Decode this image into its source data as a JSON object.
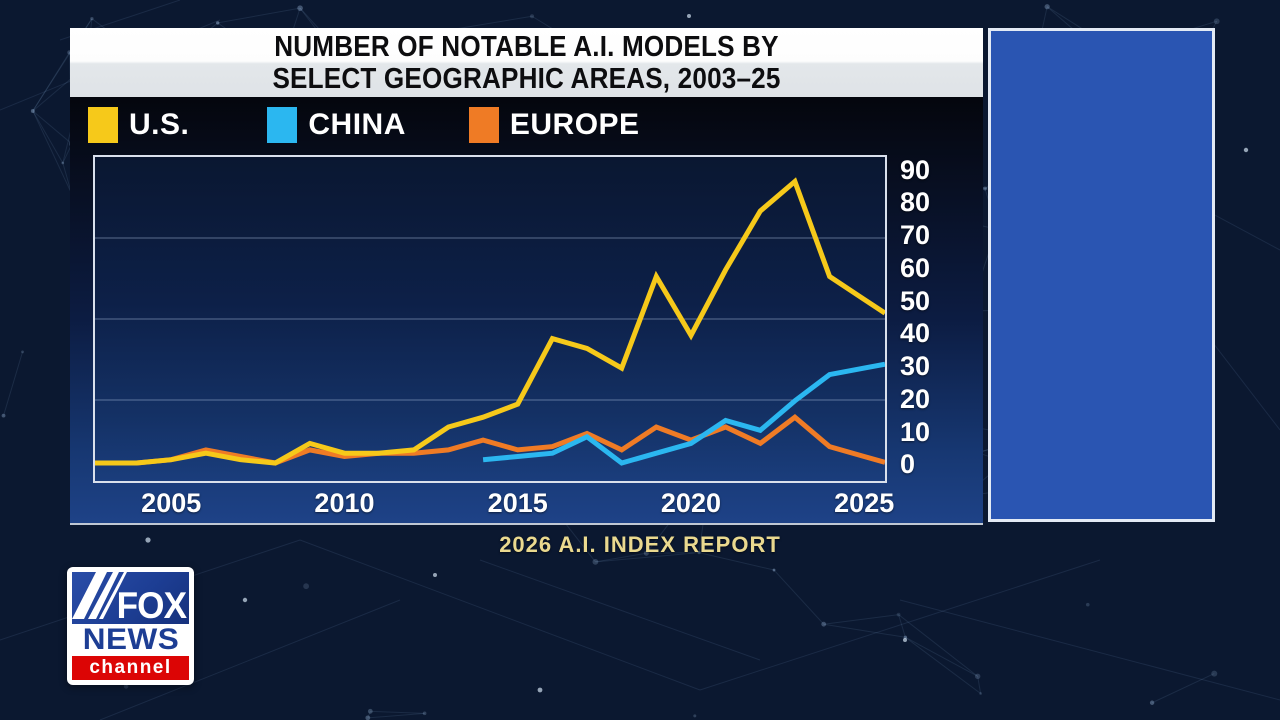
{
  "header": {
    "title_line1": "NUMBER OF NOTABLE A.I. MODELS BY",
    "title_line2": "SELECT GEOGRAPHIC AREAS, 2003–25"
  },
  "legend": {
    "position": "top-left",
    "items": [
      {
        "label": "U.S.",
        "color": "#f6c91a"
      },
      {
        "label": "CHINA",
        "color": "#2bb7f0"
      },
      {
        "label": "EUROPE",
        "color": "#ef7b25"
      }
    ]
  },
  "chart_data": {
    "type": "line",
    "title": "NUMBER OF NOTABLE A.I. MODELS BY SELECT GEOGRAPHIC AREAS, 2003–25",
    "x": [
      2003,
      2004,
      2005,
      2006,
      2007,
      2008,
      2009,
      2010,
      2011,
      2012,
      2013,
      2014,
      2015,
      2016,
      2017,
      2018,
      2019,
      2020,
      2021,
      2022,
      2023,
      2024,
      2025
    ],
    "series": [
      {
        "name": "U.S.",
        "color": "#f6c91a",
        "values": [
          1,
          1,
          2,
          4,
          2,
          1,
          7,
          4,
          4,
          5,
          12,
          15,
          19,
          39,
          36,
          30,
          58,
          40,
          60,
          78,
          87,
          58,
          51
        ]
      },
      {
        "name": "CHINA",
        "color": "#2bb7f0",
        "values": [
          null,
          null,
          null,
          null,
          null,
          null,
          null,
          null,
          null,
          null,
          null,
          2,
          3,
          4,
          9,
          1,
          4,
          7,
          14,
          11,
          20,
          28,
          30
        ]
      },
      {
        "name": "EUROPE",
        "color": "#ef7b25",
        "values": [
          1,
          1,
          2,
          5,
          3,
          1,
          5,
          3,
          4,
          4,
          5,
          8,
          5,
          6,
          10,
          5,
          12,
          8,
          12,
          7,
          15,
          6,
          3
        ]
      }
    ],
    "xticks": [
      2005,
      2010,
      2015,
      2020,
      2025
    ],
    "yticks": [
      0,
      10,
      20,
      30,
      40,
      50,
      60,
      70,
      80,
      90
    ],
    "xlim": [
      2002.8,
      2025.6
    ],
    "ylim": [
      -4.5,
      94.5
    ],
    "grid": true,
    "legend_position": "top-left"
  },
  "source": {
    "label": "2026 A.I. INDEX REPORT"
  },
  "logo": {
    "line1": "FOX",
    "line2": "NEWS",
    "line3": "channel"
  }
}
